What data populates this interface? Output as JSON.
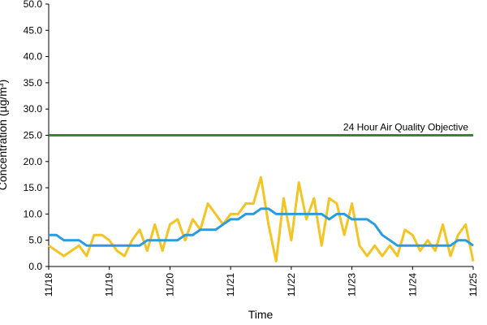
{
  "chart_data": {
    "type": "line",
    "x_label": "Time",
    "y_label": "Concentration (µg/m³)",
    "x": [
      0,
      0.125,
      0.25,
      0.375,
      0.5,
      0.625,
      0.75,
      0.875,
      1,
      1.125,
      1.25,
      1.375,
      1.5,
      1.625,
      1.75,
      1.875,
      2,
      2.125,
      2.25,
      2.375,
      2.5,
      2.625,
      2.75,
      2.875,
      3,
      3.125,
      3.25,
      3.375,
      3.5,
      3.625,
      3.75,
      3.875,
      4,
      4.125,
      4.25,
      4.375,
      4.5,
      4.625,
      4.75,
      4.875,
      5,
      5.125,
      5.25,
      5.375,
      5.5,
      5.625,
      5.75,
      5.875,
      6,
      6.125,
      6.25,
      6.375,
      6.5,
      6.625,
      6.75,
      6.875,
      7
    ],
    "series": [
      {
        "color": "#f2c425",
        "values": [
          4,
          3,
          2,
          3,
          4,
          2,
          6,
          6,
          5,
          3,
          2,
          5,
          7,
          3,
          8,
          3,
          8,
          9,
          5,
          9,
          7,
          12,
          10,
          8,
          10,
          10,
          12,
          12,
          17,
          8,
          1,
          13,
          5,
          16,
          9,
          13,
          4,
          13,
          12,
          6,
          12,
          4,
          2,
          4,
          2,
          4,
          2,
          7,
          6,
          3,
          5,
          3,
          8,
          2,
          6,
          8,
          1
        ]
      },
      {
        "color": "#2b9be0",
        "values": [
          6,
          6,
          5,
          5,
          5,
          4,
          4,
          4,
          4,
          4,
          4,
          4,
          4,
          5,
          5,
          5,
          5,
          5,
          6,
          6,
          7,
          7,
          7,
          8,
          9,
          9,
          10,
          10,
          11,
          11,
          10,
          10,
          10,
          10,
          10,
          10,
          10,
          9,
          10,
          10,
          9,
          9,
          9,
          8,
          6,
          5,
          4,
          4,
          4,
          4,
          4,
          4,
          4,
          4,
          5,
          5,
          4
        ]
      }
    ],
    "reference_lines": [
      {
        "value": 25,
        "label": "24 Hour Air Quality Objective",
        "color": "#2e8b2e"
      }
    ],
    "xlim": [
      0,
      7
    ],
    "xticks": [
      {
        "value": 0,
        "label": "11/18"
      },
      {
        "value": 1,
        "label": "11/19"
      },
      {
        "value": 2,
        "label": "11/20"
      },
      {
        "value": 3,
        "label": "11/21"
      },
      {
        "value": 4,
        "label": "11/22"
      },
      {
        "value": 5,
        "label": "11/23"
      },
      {
        "value": 6,
        "label": "11/24"
      },
      {
        "value": 7,
        "label": "11/25"
      }
    ],
    "ylim": [
      0,
      50
    ],
    "yticks": [
      {
        "value": 0,
        "label": "0.0"
      },
      {
        "value": 5,
        "label": "5.0"
      },
      {
        "value": 10,
        "label": "10.0"
      },
      {
        "value": 15,
        "label": "15.0"
      },
      {
        "value": 20,
        "label": "20.0"
      },
      {
        "value": 25,
        "label": "25.0"
      },
      {
        "value": 30,
        "label": "30.0"
      },
      {
        "value": 35,
        "label": "35.0"
      },
      {
        "value": 40,
        "label": "40.0"
      },
      {
        "value": 45,
        "label": "45.0"
      },
      {
        "value": 50,
        "label": "50.0"
      }
    ],
    "grid": false
  }
}
